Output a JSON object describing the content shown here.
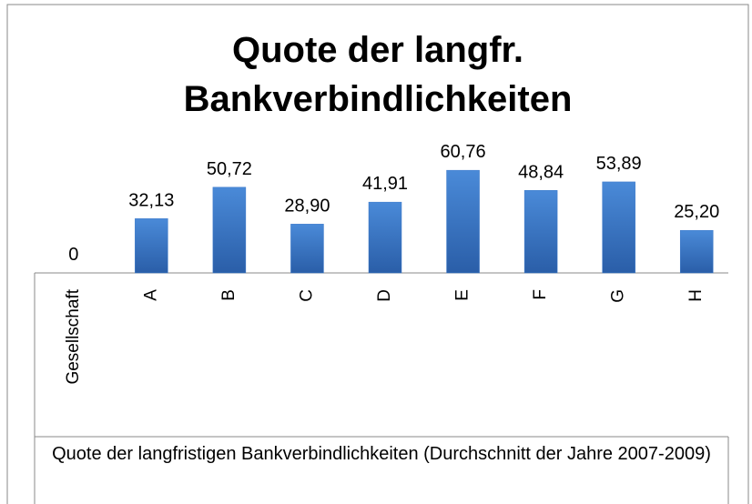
{
  "chart_data": {
    "type": "bar",
    "title": "Quote der langfr. Bankverbindlichkeiten",
    "x_label": "Quote der langfristigen Bankverbindlichkeiten (Durchschnitt der Jahre 2007-2009)",
    "categories": [
      "Gesellschaft",
      "A",
      "B",
      "C",
      "D",
      "E",
      "F",
      "G",
      "H"
    ],
    "values": [
      0,
      32.13,
      50.72,
      28.9,
      41.91,
      60.76,
      48.84,
      53.89,
      25.2
    ],
    "value_labels": [
      "0",
      "32,13",
      "50,72",
      "28,90",
      "41,91",
      "60,76",
      "48,84",
      "53,89",
      "25,20"
    ],
    "color": "#3b78c8",
    "ylim": [
      0,
      70
    ]
  }
}
